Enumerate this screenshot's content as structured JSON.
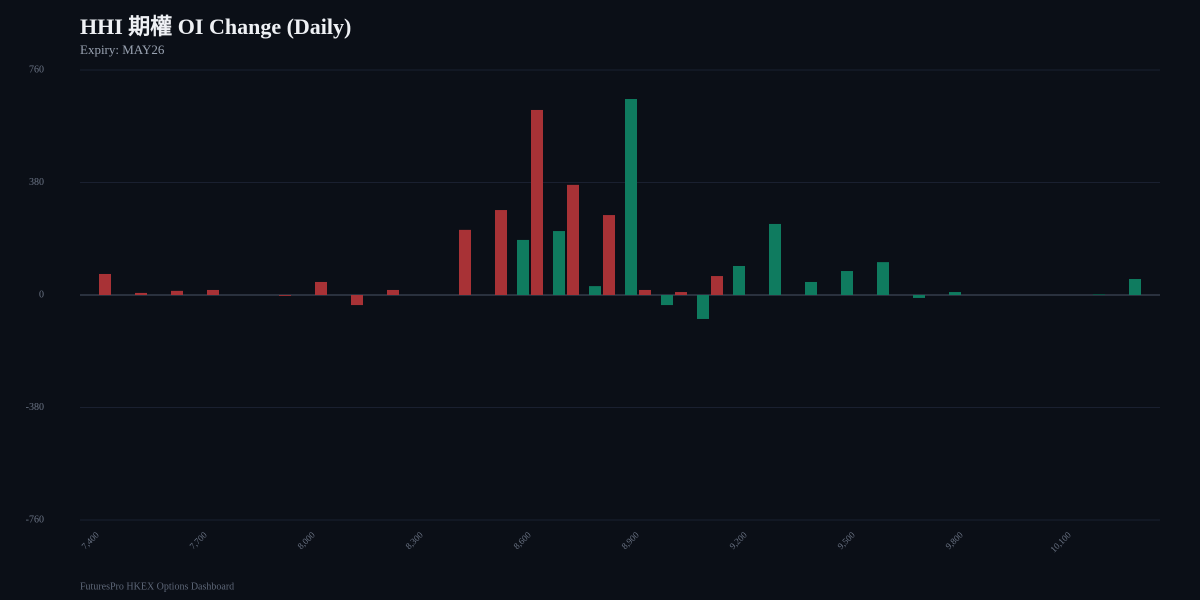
{
  "chart_data": {
    "type": "bar",
    "title": "HHI 期權 OI Change (Daily)",
    "subtitle": "Expiry: MAY26",
    "footer": "FuturesPro HKEX Options Dashboard",
    "categories": [
      "7,400",
      null,
      null,
      "7,700",
      null,
      null,
      "8,000",
      null,
      null,
      "8,300",
      null,
      null,
      "8,600",
      null,
      null,
      "8,900",
      null,
      null,
      "9,200",
      null,
      null,
      "9,500",
      null,
      null,
      "9,800",
      null,
      null,
      "10,100",
      null,
      null
    ],
    "series": [
      {
        "color": "#0f7b5f",
        "values": [
          0,
          0,
          0,
          0,
          0,
          0,
          0,
          0,
          0,
          0,
          0,
          0,
          186,
          216,
          30,
          662,
          -34,
          -81,
          98,
          240,
          44,
          81,
          111,
          -10,
          10,
          0,
          0,
          0,
          2,
          54
        ]
      },
      {
        "color": "#a83236",
        "values": [
          71,
          7,
          14,
          17,
          0,
          -3,
          44,
          -34,
          17,
          0,
          220,
          287,
          625,
          372,
          270,
          17,
          10,
          64,
          0,
          0,
          0,
          0,
          0,
          0,
          0,
          0,
          0,
          0,
          0,
          0
        ]
      }
    ],
    "ylim": [
      -760,
      760
    ],
    "yticks": [
      -760,
      -380,
      0,
      380,
      760
    ],
    "grid": true
  }
}
